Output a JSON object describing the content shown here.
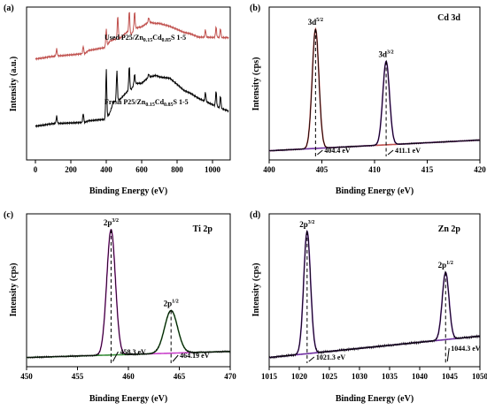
{
  "chart_data": [
    {
      "id": "a",
      "type": "line",
      "panel_label": "(a)",
      "xlabel": "Binding Energy (eV)",
      "ylabel": "Intensity (a.u.)",
      "xlim": [
        -50,
        1100
      ],
      "xticks": [
        0,
        200,
        400,
        600,
        800,
        1000
      ],
      "series": [
        {
          "name": "Used P25/Zn0.15Cd0.85S 1-5",
          "label_main": "Used P25/Zn",
          "label_sub1": "0.15",
          "label_mid": "Cd",
          "label_sub2": "0.85",
          "label_end": "S 1-5",
          "color": "#c0504d",
          "x": [
            0,
            100,
            280,
            300,
            400,
            420,
            440,
            480,
            520,
            540,
            560,
            600,
            640,
            680,
            700,
            760,
            800,
            840,
            880,
            920,
            960,
            1000,
            1040,
            1090
          ],
          "y": [
            0.66,
            0.68,
            0.7,
            0.72,
            0.74,
            0.78,
            0.79,
            0.8,
            0.84,
            0.82,
            0.86,
            0.87,
            0.9,
            0.89,
            0.89,
            0.87,
            0.85,
            0.83,
            0.82,
            0.8,
            0.8,
            0.8,
            0.8,
            0.8
          ],
          "peaks": [
            [
              120,
              0.73
            ],
            [
              270,
              0.75
            ],
            [
              400,
              0.86
            ],
            [
              465,
              0.95
            ],
            [
              530,
              0.98
            ],
            [
              560,
              0.97
            ],
            [
              640,
              0.93
            ],
            [
              960,
              0.85
            ],
            [
              1020,
              0.87
            ],
            [
              1045,
              0.86
            ]
          ]
        },
        {
          "name": "Fresh P25/Zn0.15Cd0.85S 1-5",
          "label_main": "Fresh P25/Zn",
          "label_sub1": "0.15",
          "label_mid": "Cd",
          "label_sub2": "0.85",
          "label_end": "S 1-5",
          "color": "#000000",
          "x": [
            0,
            100,
            280,
            300,
            400,
            420,
            440,
            480,
            520,
            540,
            560,
            600,
            640,
            680,
            700,
            760,
            800,
            840,
            880,
            920,
            960,
            1000,
            1040,
            1090
          ],
          "y": [
            0.22,
            0.24,
            0.25,
            0.26,
            0.27,
            0.31,
            0.38,
            0.4,
            0.45,
            0.46,
            0.5,
            0.5,
            0.54,
            0.55,
            0.54,
            0.53,
            0.49,
            0.45,
            0.43,
            0.4,
            0.38,
            0.36,
            0.34,
            0.32
          ],
          "peaks": [
            [
              120,
              0.29
            ],
            [
              270,
              0.31
            ],
            [
              400,
              0.6
            ],
            [
              460,
              0.59
            ],
            [
              530,
              0.62
            ],
            [
              560,
              0.56
            ],
            [
              640,
              0.56
            ],
            [
              960,
              0.44
            ],
            [
              1020,
              0.45
            ],
            [
              1045,
              0.42
            ]
          ]
        }
      ]
    },
    {
      "id": "b",
      "type": "line",
      "panel_label": "(b)",
      "title": "Cd 3d",
      "xlabel": "Binding Energy (eV)",
      "ylabel": "Intensity (cps)",
      "xlim": [
        400,
        420
      ],
      "xticks": [
        400,
        405,
        410,
        415,
        420
      ],
      "peaks": [
        {
          "label": "3d",
          "sup": "5/2",
          "center": 404.4,
          "annotation": "404.4 eV",
          "height": 1.0,
          "width": 0.45,
          "color": "#c0504d"
        },
        {
          "label": "3d",
          "sup": "3/2",
          "center": 411.1,
          "annotation": "411.1 eV",
          "height": 0.7,
          "width": 0.45,
          "color": "#7030a0"
        }
      ],
      "background_color": "#3040c0"
    },
    {
      "id": "c",
      "type": "line",
      "panel_label": "(c)",
      "title": "Ti 2p",
      "xlabel": "Binding Energy (eV)",
      "ylabel": "Intensity (cps)",
      "xlim": [
        450,
        470
      ],
      "xticks": [
        450,
        455,
        460,
        465,
        470
      ],
      "peaks": [
        {
          "label": "2p",
          "sup": "3/2",
          "center": 458.3,
          "annotation": "458.3 eV",
          "height": 1.0,
          "width": 0.6,
          "color": "#cc44cc"
        },
        {
          "label": "2p",
          "sup": "1/2",
          "center": 464.19,
          "annotation": "464.19 eV",
          "height": 0.34,
          "width": 0.9,
          "color": "#3a8f3a"
        }
      ],
      "background_color": "#3040c0"
    },
    {
      "id": "d",
      "type": "line",
      "panel_label": "(d)",
      "title": "Zn 2p",
      "xlabel": "Binding Energy (eV)",
      "ylabel": "Intensity (cps)",
      "xlim": [
        1015,
        1050
      ],
      "xticks": [
        1015,
        1020,
        1025,
        1030,
        1035,
        1040,
        1045,
        1050
      ],
      "peaks": [
        {
          "label": "2p",
          "sup": "3/2",
          "center": 1021.3,
          "annotation": "1021.3 eV",
          "height": 1.0,
          "width": 0.8,
          "color": "#7030a0"
        },
        {
          "label": "2p",
          "sup": "1/2",
          "center": 1044.3,
          "annotation": "1044.3 eV",
          "height": 0.55,
          "width": 0.8,
          "color": "#7030a0"
        }
      ],
      "background_color": "#3040c0"
    }
  ]
}
